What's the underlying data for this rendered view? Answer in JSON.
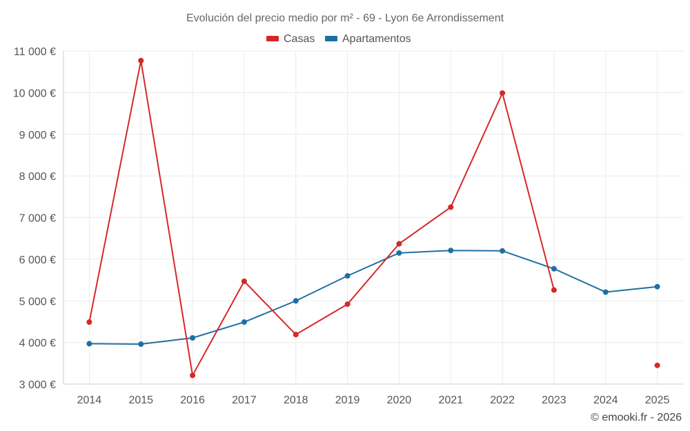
{
  "chart_data": {
    "type": "line",
    "title": "Evolución del precio medio por m² - 69 - Lyon 6e Arrondissement",
    "categories": [
      "2014",
      "2015",
      "2016",
      "2017",
      "2018",
      "2019",
      "2020",
      "2021",
      "2022",
      "2023",
      "2024",
      "2025"
    ],
    "ylim": [
      3000,
      11000
    ],
    "yticks": [
      3000,
      4000,
      5000,
      6000,
      7000,
      8000,
      9000,
      10000,
      11000
    ],
    "ytick_labels": [
      "3 000 €",
      "4 000 €",
      "5 000 €",
      "6 000 €",
      "7 000 €",
      "8 000 €",
      "9 000 €",
      "10 000 €",
      "11 000 €"
    ],
    "grid": true,
    "legend_position": "top-center",
    "series": [
      {
        "name": "Casas",
        "color": "#d62728",
        "values": [
          4490,
          10770,
          3210,
          5470,
          4190,
          4920,
          6370,
          7250,
          9990,
          5260,
          null,
          3450
        ]
      },
      {
        "name": "Apartamentos",
        "color": "#1f6fa3",
        "values": [
          3970,
          3960,
          4110,
          4490,
          5000,
          5600,
          6150,
          6210,
          6200,
          5770,
          5210,
          5340
        ]
      }
    ]
  },
  "credit": "© emooki.fr - 2026"
}
